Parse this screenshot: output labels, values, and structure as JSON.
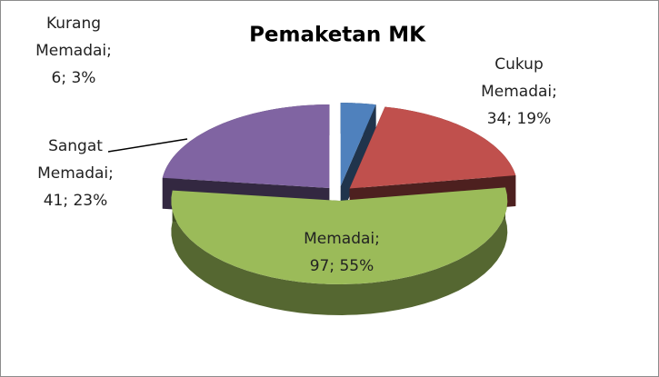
{
  "chart_data": {
    "type": "pie",
    "title": "Pemaketan MK",
    "categories": [
      "Kurang Memadai",
      "Cukup Memadai",
      "Memadai",
      "Sangat Memadai"
    ],
    "values": [
      6,
      34,
      97,
      41
    ],
    "value_labels": [
      "Kurang Memadai; 6; 3%",
      "Cukup Memadai; 34; 19%",
      "Memadai; 97; 55%",
      "Sangat Memadai; 41; 23%"
    ],
    "colors": [
      "#4f81bd",
      "#c0504d",
      "#9bbb59",
      "#8064a2"
    ]
  }
}
